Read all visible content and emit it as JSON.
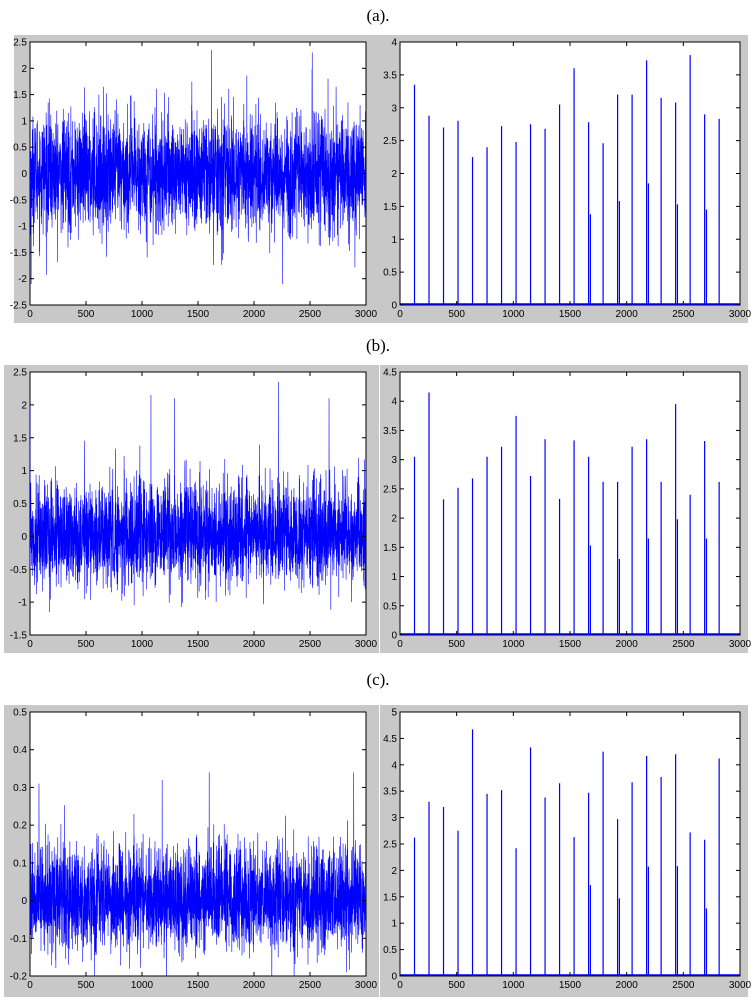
{
  "captions": [
    "(a).",
    "(b).",
    "(c)."
  ],
  "chart_data": [
    {
      "type": "line",
      "panel": "a-left",
      "title": "",
      "xlabel": "",
      "ylabel": "",
      "xlim": [
        0,
        3000
      ],
      "ylim": [
        -2.5,
        2.5
      ],
      "xticks": [
        0,
        500,
        1000,
        1500,
        2000,
        2500,
        3000
      ],
      "yticks": [
        -2.5,
        -2,
        -1.5,
        -1,
        -0.5,
        0,
        0.5,
        1,
        1.5,
        2,
        2.5
      ],
      "signal": {
        "n": 3000,
        "sigma": 0.55,
        "peaks": [
          [
            1620,
            2.35
          ],
          [
            2520,
            2.3
          ],
          [
            2255,
            -2.1
          ],
          [
            10,
            -2.1
          ]
        ]
      },
      "grid": false,
      "color": "#0000ff"
    },
    {
      "type": "bar",
      "panel": "a-right",
      "title": "",
      "xlabel": "",
      "ylabel": "",
      "xlim": [
        0,
        3000
      ],
      "ylim": [
        0,
        4
      ],
      "xticks": [
        0,
        500,
        1000,
        1500,
        2000,
        2500,
        3000
      ],
      "yticks": [
        0,
        0.5,
        1,
        1.5,
        2,
        2.5,
        3,
        3.5,
        4
      ],
      "x": [
        128,
        256,
        384,
        512,
        640,
        768,
        896,
        1024,
        1152,
        1280,
        1408,
        1536,
        1664,
        1680,
        1792,
        1920,
        1936,
        2048,
        2176,
        2192,
        2304,
        2432,
        2448,
        2560,
        2688,
        2704,
        2816
      ],
      "values": [
        3.35,
        2.88,
        2.7,
        2.8,
        2.25,
        2.4,
        2.72,
        2.48,
        2.75,
        2.68,
        3.05,
        3.6,
        2.78,
        1.38,
        2.46,
        3.2,
        1.58,
        3.2,
        3.72,
        1.85,
        3.15,
        3.08,
        1.53,
        3.8,
        2.9,
        1.45,
        2.83
      ],
      "grid": false,
      "color": "#0000ff"
    },
    {
      "type": "line",
      "panel": "b-left",
      "title": "",
      "xlabel": "",
      "ylabel": "",
      "xlim": [
        0,
        3000
      ],
      "ylim": [
        -1.5,
        2.5
      ],
      "xticks": [
        0,
        500,
        1000,
        1500,
        2000,
        2500,
        3000
      ],
      "yticks": [
        -1.5,
        -1,
        -0.5,
        0,
        0.5,
        1,
        1.5,
        2,
        2.5
      ],
      "signal": {
        "n": 3000,
        "sigma": 0.42,
        "peaks": [
          [
            1080,
            2.15
          ],
          [
            1290,
            2.1
          ],
          [
            2220,
            2.35
          ],
          [
            2670,
            2.1
          ],
          [
            0,
            2.0
          ]
        ]
      },
      "grid": false,
      "color": "#0000ff"
    },
    {
      "type": "bar",
      "panel": "b-right",
      "title": "",
      "xlabel": "",
      "ylabel": "",
      "xlim": [
        0,
        3000
      ],
      "ylim": [
        0,
        4.5
      ],
      "xticks": [
        0,
        500,
        1000,
        1500,
        2000,
        2500,
        3000
      ],
      "yticks": [
        0,
        0.5,
        1,
        1.5,
        2,
        2.5,
        3,
        3.5,
        4,
        4.5
      ],
      "x": [
        128,
        256,
        384,
        512,
        640,
        768,
        896,
        1024,
        1152,
        1280,
        1408,
        1536,
        1664,
        1680,
        1792,
        1920,
        1936,
        2048,
        2176,
        2192,
        2304,
        2432,
        2448,
        2560,
        2688,
        2704,
        2816
      ],
      "values": [
        3.05,
        4.15,
        2.32,
        2.52,
        2.68,
        3.05,
        3.22,
        3.75,
        2.72,
        3.35,
        2.33,
        3.33,
        3.05,
        1.53,
        2.62,
        2.62,
        1.3,
        3.22,
        3.35,
        1.65,
        2.62,
        3.95,
        1.98,
        2.4,
        3.32,
        1.65,
        2.62
      ],
      "grid": false,
      "color": "#0000ff"
    },
    {
      "type": "line",
      "panel": "c-left",
      "title": "",
      "xlabel": "",
      "ylabel": "",
      "xlim": [
        0,
        3000
      ],
      "ylim": [
        -0.2,
        0.5
      ],
      "xticks": [
        0,
        500,
        1000,
        1500,
        2000,
        2500,
        3000
      ],
      "yticks": [
        -0.2,
        -0.1,
        0,
        0.1,
        0.2,
        0.3,
        0.4,
        0.5
      ],
      "signal": {
        "n": 3000,
        "sigma": 0.075,
        "peaks": [
          [
            1600,
            0.34
          ],
          [
            2890,
            0.34
          ],
          [
            1180,
            0.32
          ],
          [
            80,
            0.31
          ]
        ]
      },
      "grid": false,
      "color": "#0000ff"
    },
    {
      "type": "bar",
      "panel": "c-right",
      "title": "",
      "xlabel": "",
      "ylabel": "",
      "xlim": [
        0,
        3000
      ],
      "ylim": [
        0,
        5
      ],
      "xticks": [
        0,
        500,
        1000,
        1500,
        2000,
        2500,
        3000
      ],
      "yticks": [
        0,
        0.5,
        1,
        1.5,
        2,
        2.5,
        3,
        3.5,
        4,
        4.5,
        5
      ],
      "x": [
        128,
        256,
        384,
        512,
        640,
        768,
        896,
        1024,
        1152,
        1280,
        1408,
        1536,
        1664,
        1680,
        1792,
        1920,
        1936,
        2048,
        2176,
        2192,
        2304,
        2432,
        2448,
        2560,
        2688,
        2704,
        2816
      ],
      "values": [
        2.62,
        3.3,
        3.2,
        2.75,
        4.67,
        3.45,
        3.52,
        2.42,
        4.33,
        3.38,
        3.65,
        2.63,
        3.47,
        1.72,
        4.25,
        2.97,
        1.47,
        3.67,
        4.17,
        2.07,
        3.77,
        4.2,
        2.08,
        2.72,
        2.58,
        1.28,
        4.12
      ],
      "grid": false,
      "color": "#0000ff"
    }
  ]
}
